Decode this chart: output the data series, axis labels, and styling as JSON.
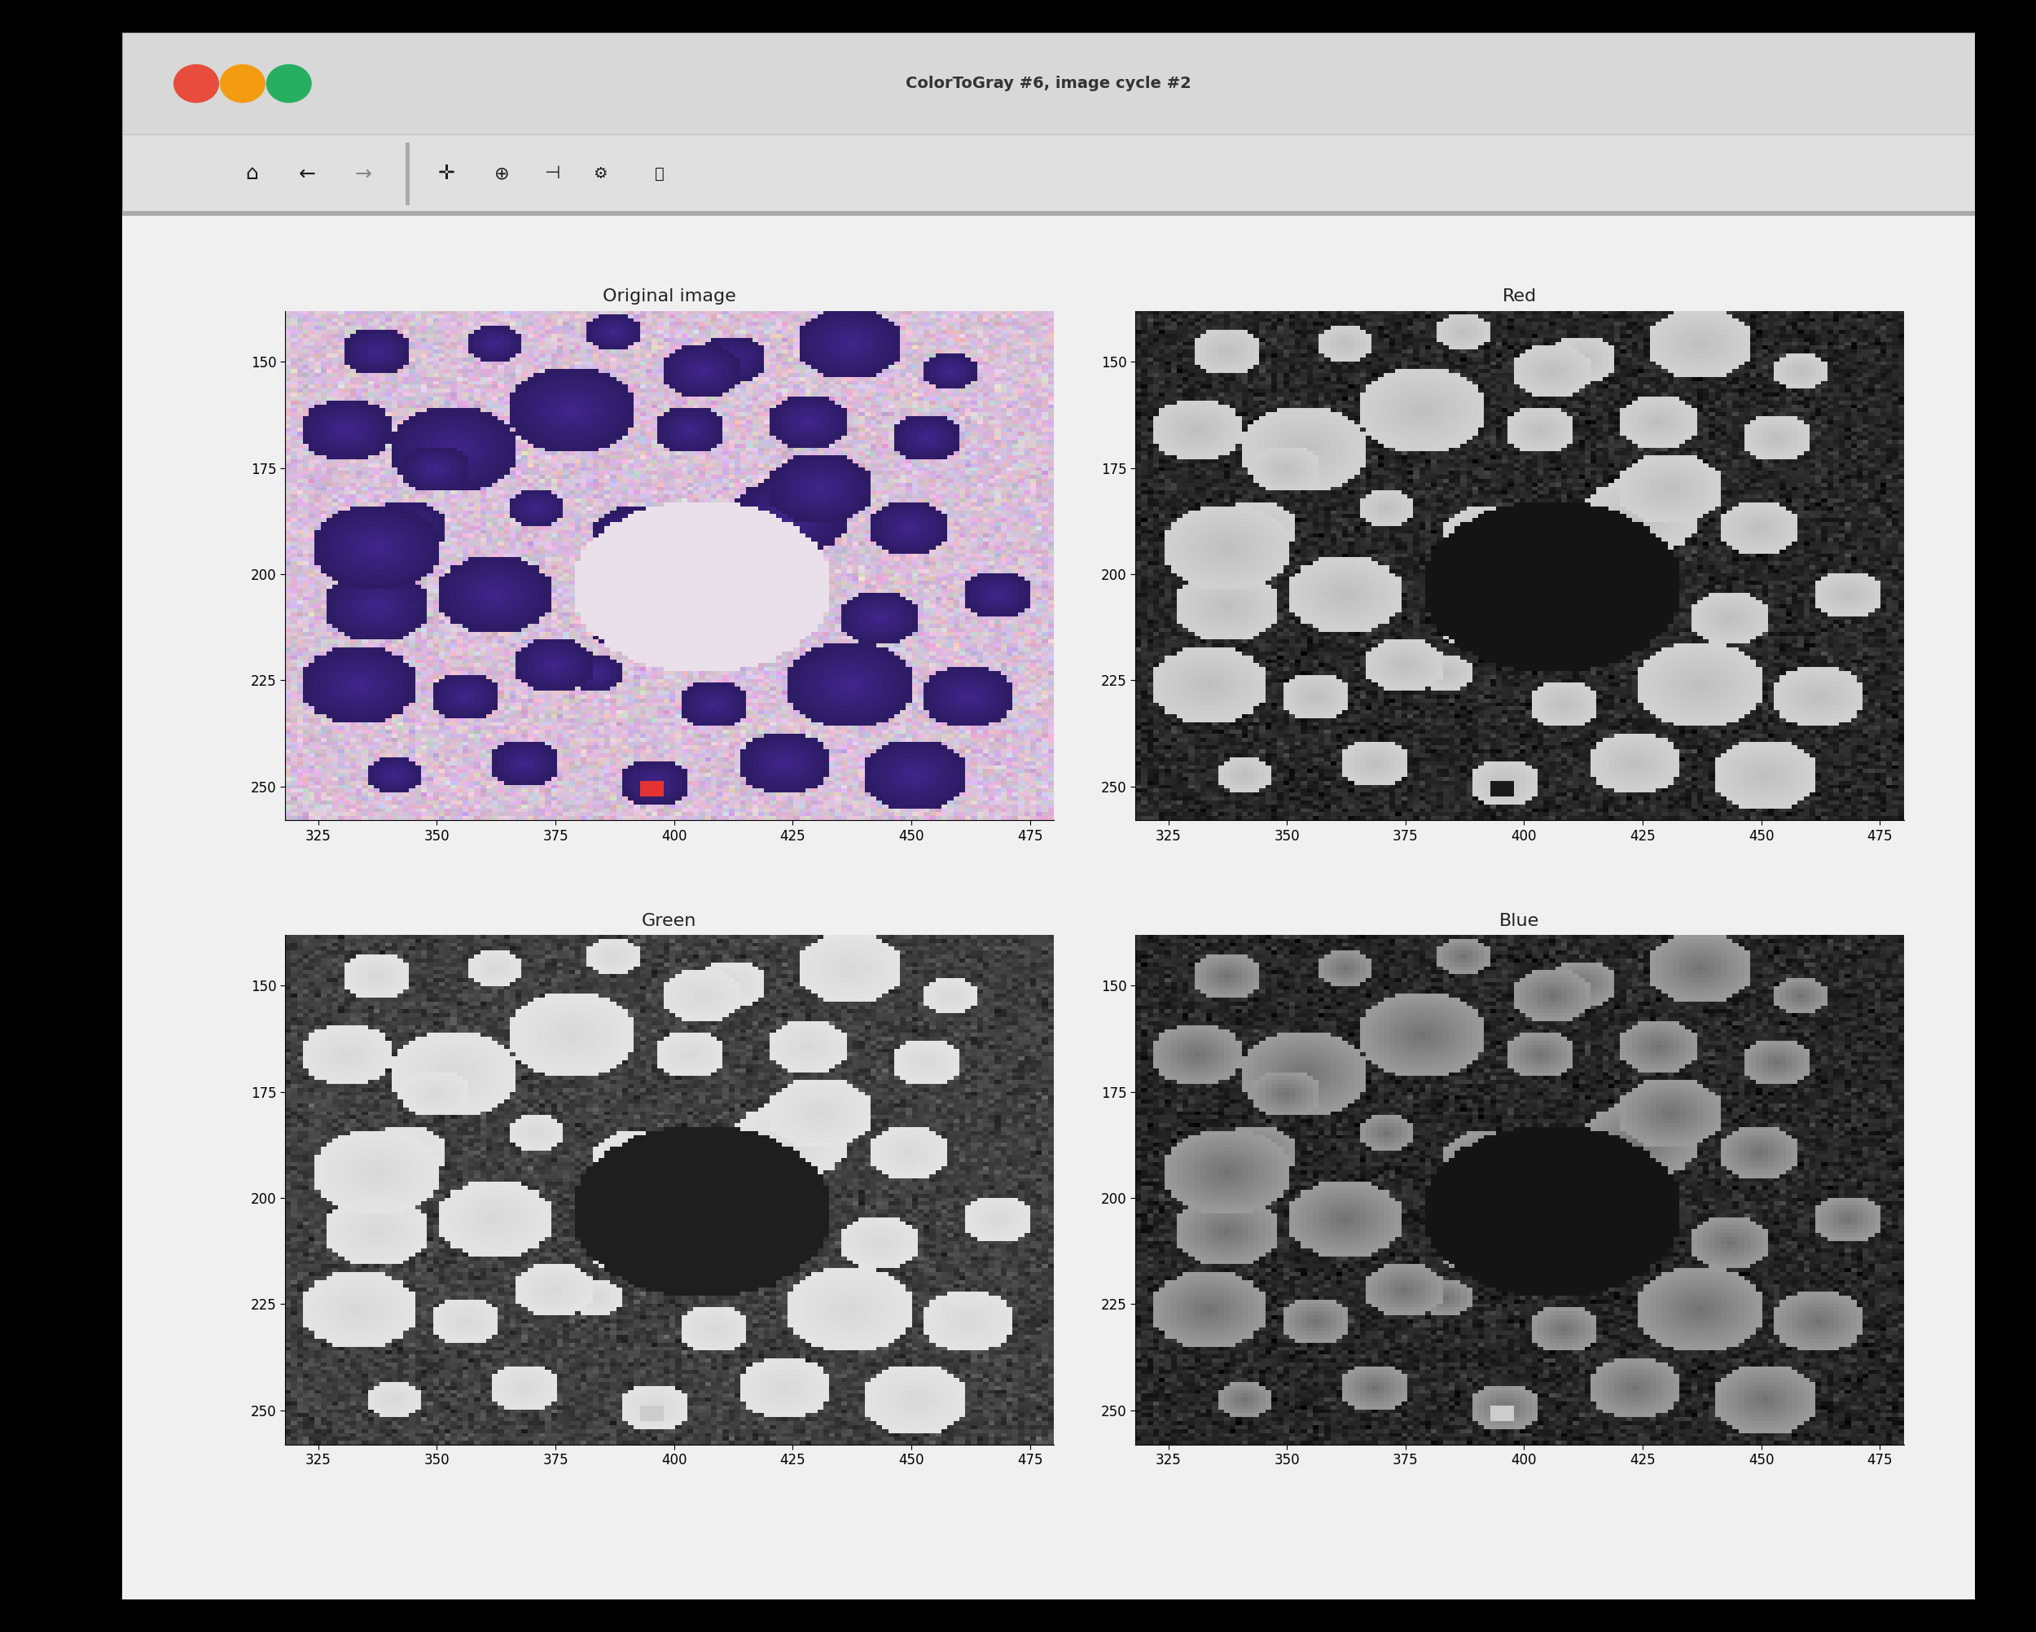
{
  "window_title": "ColorToGray #6, image cycle #2",
  "subplot_titles": [
    "Original image",
    "Red",
    "Green",
    "Blue"
  ],
  "x_ticks": [
    325,
    350,
    375,
    400,
    425,
    450,
    475
  ],
  "y_ticks": [
    150,
    175,
    200,
    225,
    250
  ],
  "x_lim": [
    318,
    480
  ],
  "y_lim": [
    258,
    138
  ],
  "figure_bg": "#000000",
  "window_bg": "#e8e8e8",
  "titlebar_bg": "#d8d8d8",
  "toolbar_bg": "#e0e0e0",
  "content_bg": "#f0f0f0",
  "btn_red": "#e74c3c",
  "btn_yellow": "#f39c12",
  "btn_green": "#27ae60",
  "image_size": 130,
  "seed": 42
}
